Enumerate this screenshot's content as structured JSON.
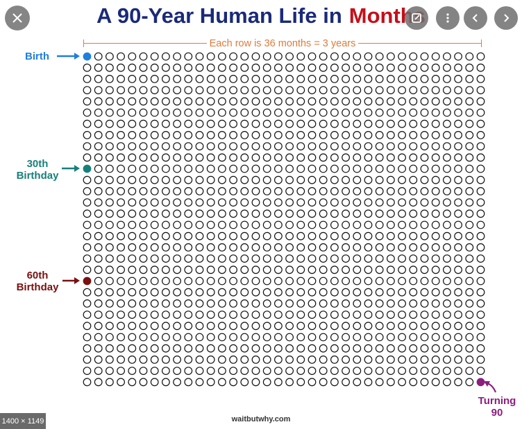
{
  "title": {
    "main": "A 90-Year Human Life in",
    "highlight": "Months"
  },
  "ruler_label": "Each row is 36 months = 3 years",
  "grid": {
    "columns": 36,
    "rows": 30
  },
  "markers": {
    "birth": {
      "label": "Birth",
      "color": "#1e7fe0"
    },
    "thirty": {
      "label_line1": "30th",
      "label_line2": "Birthday",
      "color": "#17807a"
    },
    "sixty": {
      "label_line1": "60th",
      "label_line2": "Birthday",
      "color": "#7a1010"
    },
    "ninety": {
      "label_line1": "Turning",
      "label_line2": "90",
      "color": "#8a1f80"
    }
  },
  "credit": "waitbutwhy.com",
  "image_dimensions": "1400 × 1149",
  "colors": {
    "title": "#1a2a7a",
    "highlight": "#c4101a",
    "ruler": "#e07a3a"
  },
  "controls": {
    "close_icon": "close-icon",
    "share_icon": "share-icon",
    "prev_icon": "chevron-left-icon",
    "next_icon": "chevron-right-icon"
  }
}
